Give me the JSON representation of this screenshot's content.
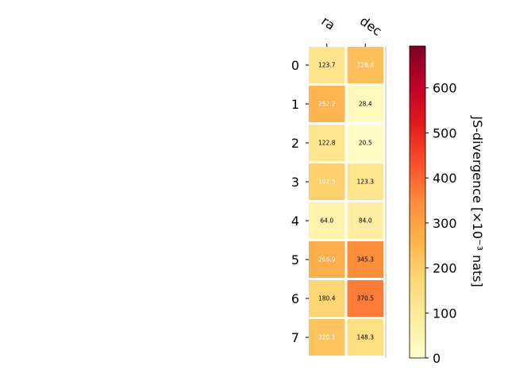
{
  "chart_data": {
    "type": "heatmap",
    "title": "",
    "columns": [
      "ra",
      "dec"
    ],
    "rows": [
      "0",
      "1",
      "2",
      "3",
      "4",
      "5",
      "6",
      "7"
    ],
    "values": [
      [
        123.7,
        228.8
      ],
      [
        252.2,
        28.4
      ],
      [
        122.8,
        20.5
      ],
      [
        192.5,
        123.3
      ],
      [
        64.0,
        84.0
      ],
      [
        266.9,
        345.3
      ],
      [
        180.4,
        370.5
      ],
      [
        220.1,
        148.3
      ]
    ],
    "value_labels": [
      [
        "123.7",
        "228.8"
      ],
      [
        "252.2",
        "28.4"
      ],
      [
        "122.8",
        "20.5"
      ],
      [
        "192.5",
        "123.3"
      ],
      [
        "64.0",
        "84.0"
      ],
      [
        "266.9",
        "345.3"
      ],
      [
        "180.4",
        "370.5"
      ],
      [
        "220.1",
        "148.3"
      ]
    ],
    "colorbar": {
      "label": "JS-divergence [×10⁻³ nats]",
      "range": [
        0,
        693
      ],
      "ticks": [
        0,
        100,
        200,
        300,
        400,
        500,
        600
      ],
      "colormap": "YlOrRd",
      "colors": [
        "#ffffcc",
        "#ffeda0",
        "#fed976",
        "#feb24c",
        "#fd8d3c",
        "#fc4e2a",
        "#e31a1c",
        "#bd0026",
        "#800026"
      ]
    },
    "label_text_color_dark": "#000000",
    "label_text_color_light": "#ffffff"
  }
}
